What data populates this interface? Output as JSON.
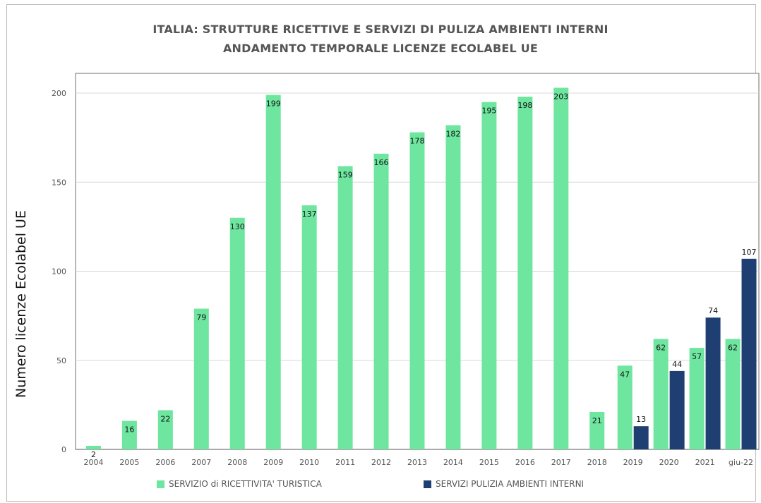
{
  "chart_data": {
    "type": "bar",
    "title": "ITALIA:  STRUTTURE RICETTIVE E SERVIZI DI PULIZA AMBIENTI INTERNI",
    "subtitle": "ANDAMENTO TEMPORALE LICENZE ECOLABEL UE",
    "xlabel": "",
    "ylabel": "Numero licenze Ecolabel UE",
    "ylim": [
      0,
      210
    ],
    "yticks": [
      0,
      50,
      100,
      150,
      200
    ],
    "grid": "horizontal",
    "legend_position": "bottom",
    "categories": [
      "2004",
      "2005",
      "2006",
      "2007",
      "2008",
      "2009",
      "2010",
      "2011",
      "2012",
      "2013",
      "2014",
      "2015",
      "2016",
      "2017",
      "2018",
      "2019",
      "2020",
      "2021",
      "giu-22"
    ],
    "series": [
      {
        "name": "SERVIZIO di RICETTIVITA' TURISTICA",
        "color": "#6ee6a0",
        "values": [
          2,
          16,
          22,
          79,
          130,
          199,
          137,
          159,
          166,
          178,
          182,
          195,
          198,
          203,
          21,
          47,
          62,
          57,
          62
        ],
        "labels": [
          "2",
          "16",
          "22",
          "79",
          "130",
          "199",
          "137",
          "159",
          "166",
          "178",
          "182",
          "195",
          "198",
          "203",
          "21",
          "47",
          "62",
          "57",
          "62"
        ]
      },
      {
        "name": "SERVIZI PULIZIA AMBIENTI INTERNI",
        "color": "#1f3f73",
        "values": [
          null,
          null,
          null,
          null,
          null,
          null,
          null,
          null,
          null,
          null,
          null,
          null,
          null,
          null,
          null,
          13,
          44,
          74,
          107
        ],
        "labels": [
          "",
          "",
          "",
          "",
          "",
          "",
          "",
          "",
          "",
          "",
          "",
          "",
          "",
          "",
          "",
          "13",
          "44",
          "74",
          "107"
        ]
      }
    ]
  }
}
